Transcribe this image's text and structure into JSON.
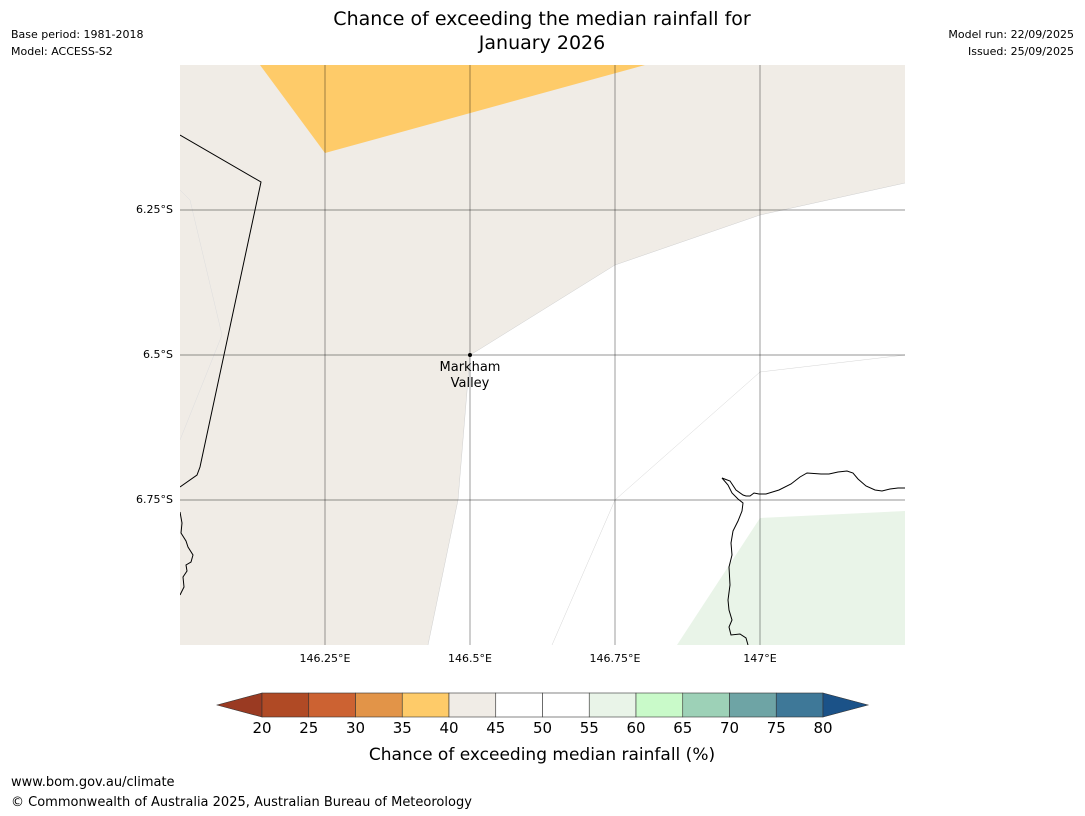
{
  "header": {
    "title_line1": "Chance of exceeding the median rainfall for",
    "title_line2": "January 2026",
    "base_period": "Base period: 1981-2018",
    "model": "Model: ACCESS-S2",
    "model_run": "Model run: 22/09/2025",
    "issued": "Issued: 25/09/2025"
  },
  "map": {
    "lat_labels": [
      "6.25°S",
      "6.5°S",
      "6.75°S"
    ],
    "lon_labels": [
      "146.25°E",
      "146.5°E",
      "146.75°E",
      "147°E"
    ],
    "place_label_line1": "Markham",
    "place_label_line2": "Valley",
    "categories": [
      {
        "range": "35-40",
        "color": "#FECB69"
      },
      {
        "range": "40-45",
        "color": "#F0ECE6"
      },
      {
        "range": "45-55",
        "color": "#FFFFFF"
      },
      {
        "range": "55-60",
        "color": "#E9F4E8"
      }
    ]
  },
  "colorbar": {
    "ticks": [
      "20",
      "25",
      "30",
      "35",
      "40",
      "45",
      "50",
      "55",
      "60",
      "65",
      "70",
      "75",
      "80"
    ],
    "colors": [
      "#B04A25",
      "#CC6232",
      "#E29448",
      "#FECB69",
      "#F0ECE6",
      "#FFFFFF",
      "#FFFFFF",
      "#E9F4E8",
      "#C9FAC9",
      "#9DD1B7",
      "#6EA4A5",
      "#3E7898"
    ],
    "under_color": "#9A3A22",
    "over_color": "#1B5288",
    "label": "Chance of exceeding median rainfall (%)"
  },
  "footer": {
    "url": "www.bom.gov.au/climate",
    "copyright": "© Commonwealth of Australia 2025, Australian Bureau of Meteorology"
  }
}
